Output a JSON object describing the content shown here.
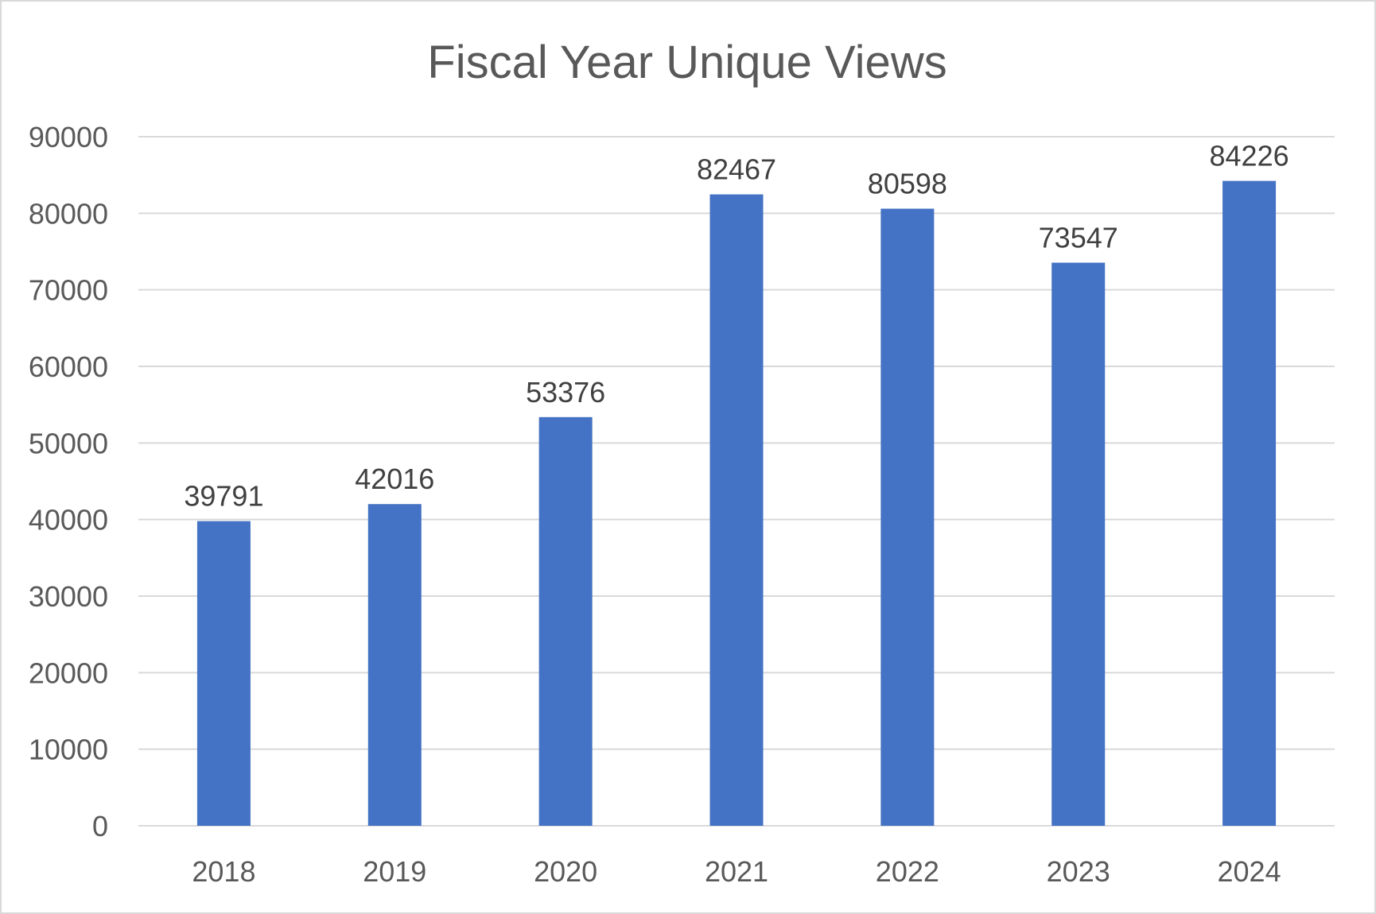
{
  "chart_data": {
    "type": "bar",
    "title": "Fiscal Year Unique Views",
    "xlabel": "",
    "ylabel": "",
    "categories": [
      "2018",
      "2019",
      "2020",
      "2021",
      "2022",
      "2023",
      "2024"
    ],
    "values": [
      39791,
      42016,
      53376,
      82467,
      80598,
      73547,
      84226
    ],
    "data_labels": [
      "39791",
      "42016",
      "53376",
      "82467",
      "80598",
      "73547",
      "84226"
    ],
    "ylim": [
      0,
      90000
    ],
    "yticks": [
      0,
      10000,
      20000,
      30000,
      40000,
      50000,
      60000,
      70000,
      80000,
      90000
    ],
    "ytick_labels": [
      "0",
      "10000",
      "20000",
      "30000",
      "40000",
      "50000",
      "60000",
      "70000",
      "80000",
      "90000"
    ],
    "grid": true,
    "legend": "none",
    "colors": {
      "bar": "#4472c4",
      "gridline": "#d9d9d9",
      "title": "#595959",
      "tick": "#595959",
      "label": "#404040"
    }
  }
}
